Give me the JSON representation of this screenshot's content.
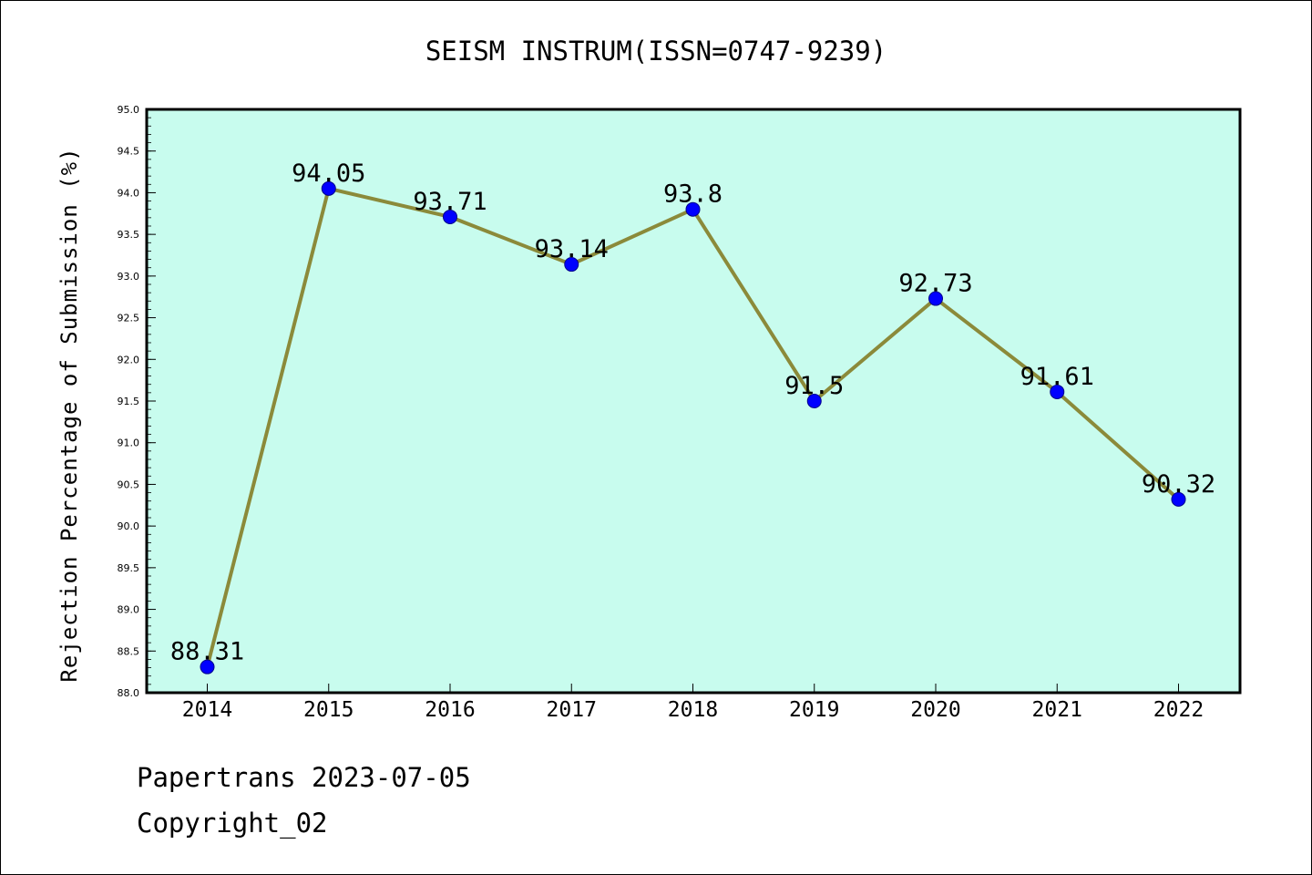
{
  "chart_data": {
    "type": "line",
    "title": "SEISM INSTRUM(ISSN=0747-9239)",
    "xlabel": "",
    "ylabel": "Rejection Percentage of Submission (%)",
    "categories": [
      "2014",
      "2015",
      "2016",
      "2017",
      "2018",
      "2019",
      "2020",
      "2021",
      "2022"
    ],
    "values": [
      88.31,
      94.05,
      93.71,
      93.14,
      93.8,
      91.5,
      92.73,
      91.61,
      90.32
    ],
    "data_labels": [
      "88.31",
      "94.05",
      "93.71",
      "93.14",
      "93.8",
      "91.5",
      "92.73",
      "91.61",
      "90.32"
    ],
    "ylim": [
      88.0,
      95.0
    ],
    "yticks": [
      "88.0",
      "88.5",
      "89.0",
      "89.5",
      "90.0",
      "90.5",
      "91.0",
      "91.5",
      "92.0",
      "92.5",
      "93.0",
      "93.5",
      "94.0",
      "94.5",
      "95.0"
    ],
    "grid": false,
    "colors": {
      "plot_background": "#c8fcee",
      "line": "#8b8a3a",
      "marker": "#0000ff"
    }
  },
  "footer": {
    "line1": "Papertrans 2023-07-05",
    "line2": "Copyright_02"
  }
}
